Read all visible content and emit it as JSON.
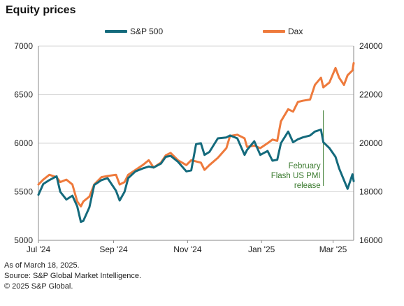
{
  "title": "Equity prices",
  "colors": {
    "sp500": "#146a7c",
    "dax": "#ee7a3c",
    "annotation": "#3a7a2e",
    "grid": "#d6d6d6",
    "axis": "#888888"
  },
  "footnotes": [
    "As of March 18, 2025.",
    "Source: S&P Global Market Intelligence.",
    "© 2025 S&P Global."
  ],
  "chart_data": {
    "type": "line",
    "title": "Equity prices",
    "x_axis": {
      "start": "2024-07-01",
      "end": "2025-03-18",
      "tick_labels": [
        "Jul '24",
        "Sep '24",
        "Nov '24",
        "Jan '25",
        "Mar '25"
      ],
      "tick_dates": [
        "2024-07-01",
        "2024-09-01",
        "2024-11-01",
        "2025-01-01",
        "2025-03-01"
      ]
    },
    "y_left": {
      "min": 5000,
      "max": 7000,
      "ticks": [
        5000,
        5500,
        6000,
        6500,
        7000
      ],
      "tick_labels": [
        "5000",
        "5500",
        "6000",
        "6500",
        "7000"
      ]
    },
    "y_right": {
      "min": 16000,
      "max": 24000,
      "ticks": [
        16000,
        18000,
        20000,
        22000,
        24000
      ],
      "tick_labels": [
        "16000",
        "18000",
        "20000",
        "22000",
        "24000"
      ]
    },
    "grid": true,
    "legend_position": "top",
    "series": [
      {
        "name": "S&P 500",
        "axis": "left",
        "color": "#146a7c",
        "dates": [
          "2024-07-01",
          "2024-07-05",
          "2024-07-10",
          "2024-07-16",
          "2024-07-19",
          "2024-07-24",
          "2024-07-29",
          "2024-08-02",
          "2024-08-05",
          "2024-08-07",
          "2024-08-12",
          "2024-08-16",
          "2024-08-22",
          "2024-08-27",
          "2024-09-03",
          "2024-09-06",
          "2024-09-10",
          "2024-09-13",
          "2024-09-19",
          "2024-09-25",
          "2024-09-30",
          "2024-10-04",
          "2024-10-10",
          "2024-10-14",
          "2024-10-18",
          "2024-10-24",
          "2024-10-31",
          "2024-11-04",
          "2024-11-08",
          "2024-11-12",
          "2024-11-15",
          "2024-11-19",
          "2024-11-26",
          "2024-12-03",
          "2024-12-06",
          "2024-12-12",
          "2024-12-18",
          "2024-12-20",
          "2024-12-26",
          "2024-12-31",
          "2025-01-06",
          "2025-01-10",
          "2025-01-14",
          "2025-01-17",
          "2025-01-23",
          "2025-01-27",
          "2025-01-31",
          "2025-02-04",
          "2025-02-10",
          "2025-02-14",
          "2025-02-19",
          "2025-02-21",
          "2025-02-26",
          "2025-03-03",
          "2025-03-06",
          "2025-03-10",
          "2025-03-13",
          "2025-03-17",
          "2025-03-18"
        ],
        "values": [
          5470,
          5580,
          5620,
          5660,
          5500,
          5420,
          5460,
          5350,
          5190,
          5200,
          5340,
          5570,
          5620,
          5640,
          5510,
          5410,
          5500,
          5640,
          5710,
          5740,
          5760,
          5750,
          5790,
          5860,
          5870,
          5810,
          5710,
          5720,
          5990,
          6000,
          5880,
          5910,
          6050,
          6060,
          6080,
          6050,
          5880,
          5930,
          6020,
          5880,
          5920,
          5820,
          5830,
          6000,
          6120,
          6010,
          6040,
          6060,
          6080,
          6120,
          6140,
          6010,
          5950,
          5860,
          5740,
          5620,
          5530,
          5680,
          5610
        ]
      },
      {
        "name": "Dax",
        "axis": "right",
        "color": "#ee7a3c",
        "dates": [
          "2024-07-01",
          "2024-07-05",
          "2024-07-10",
          "2024-07-16",
          "2024-07-19",
          "2024-07-24",
          "2024-07-29",
          "2024-08-02",
          "2024-08-05",
          "2024-08-07",
          "2024-08-12",
          "2024-08-16",
          "2024-08-22",
          "2024-08-27",
          "2024-09-03",
          "2024-09-06",
          "2024-09-10",
          "2024-09-13",
          "2024-09-19",
          "2024-09-25",
          "2024-09-30",
          "2024-10-04",
          "2024-10-10",
          "2024-10-14",
          "2024-10-18",
          "2024-10-24",
          "2024-10-31",
          "2024-11-04",
          "2024-11-08",
          "2024-11-12",
          "2024-11-15",
          "2024-11-19",
          "2024-11-26",
          "2024-12-03",
          "2024-12-06",
          "2024-12-12",
          "2024-12-18",
          "2024-12-20",
          "2024-12-26",
          "2024-12-31",
          "2025-01-06",
          "2025-01-10",
          "2025-01-14",
          "2025-01-17",
          "2025-01-23",
          "2025-01-27",
          "2025-01-31",
          "2025-02-04",
          "2025-02-10",
          "2025-02-14",
          "2025-02-19",
          "2025-02-21",
          "2025-02-26",
          "2025-03-03",
          "2025-03-06",
          "2025-03-10",
          "2025-03-13",
          "2025-03-17",
          "2025-03-18"
        ],
        "values": [
          18300,
          18500,
          18700,
          18600,
          18400,
          18500,
          18300,
          17600,
          17400,
          17600,
          17800,
          18300,
          18600,
          18650,
          18700,
          18300,
          18400,
          18700,
          18900,
          19100,
          19300,
          19000,
          19200,
          19500,
          19600,
          19300,
          19100,
          19300,
          19250,
          19200,
          18900,
          19100,
          19400,
          19800,
          20300,
          20350,
          20200,
          19850,
          19900,
          19800,
          20000,
          20150,
          20100,
          20900,
          21400,
          21300,
          21700,
          21750,
          21800,
          22400,
          22700,
          22300,
          22500,
          23100,
          22700,
          22400,
          22800,
          23000,
          23300
        ]
      }
    ],
    "annotation": {
      "text_lines": [
        "February",
        "Flash US PMI",
        "release"
      ],
      "date": "2025-02-21"
    }
  }
}
